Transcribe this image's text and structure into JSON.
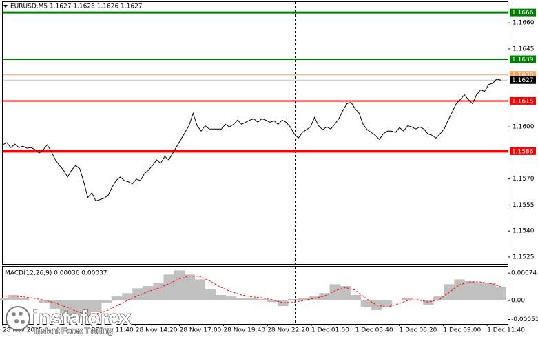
{
  "chart_data": [
    {
      "type": "line",
      "title": "EURUSD,M5  1.1627 1.1628 1.1626 1.1627",
      "series": [
        {
          "color": "#000000",
          "values": [
            1.15897,
            1.15909,
            1.15881,
            1.15901,
            1.15881,
            1.15889,
            1.15877,
            1.15881,
            1.15869,
            1.15849,
            1.15869,
            1.15897,
            1.15857,
            1.1581,
            1.15778,
            1.15751,
            1.15711,
            1.15751,
            1.15778,
            1.15759,
            1.15684,
            1.15593,
            1.1562,
            1.15573,
            1.15581,
            1.15589,
            1.15605,
            1.15652,
            1.15691,
            1.15711,
            1.15691,
            1.15684,
            1.15672,
            1.15699,
            1.15691,
            1.15731,
            1.15751,
            1.15778,
            1.1581,
            1.1579,
            1.1583,
            1.1581,
            1.15849,
            1.15889,
            1.15928,
            1.15968,
            1.16007,
            1.16079,
            1.16007,
            1.15976,
            1.16007,
            1.15988,
            1.15988,
            1.15988,
            1.15988,
            1.16015,
            1.16,
            1.16015,
            1.16039,
            1.16015,
            1.16027,
            1.16039,
            1.16047,
            1.16027,
            1.16047,
            1.16039,
            1.16027,
            1.16035,
            1.16015,
            1.16039,
            1.16027,
            1.16,
            1.1596,
            1.15936,
            1.15968,
            1.15984,
            1.16,
            1.16055,
            1.16007,
            1.15984,
            1.16,
            1.15988,
            1.16015,
            1.16047,
            1.16094,
            1.16134,
            1.16142,
            1.16106,
            1.16079,
            1.16015,
            1.15984,
            1.15968,
            1.15952,
            1.15928,
            1.1596,
            1.15976,
            1.15976,
            1.15968,
            1.15996,
            1.15976,
            1.16007,
            1.16,
            1.15988,
            1.16,
            1.15988,
            1.1596,
            1.15952,
            1.15936,
            1.1596,
            1.15988,
            1.16039,
            1.16086,
            1.16134,
            1.16158,
            1.16185,
            1.16158,
            1.16134,
            1.16185,
            1.16213,
            1.16205,
            1.16244,
            1.16252,
            1.16276,
            1.1627
          ]
        }
      ],
      "ylim": [
        1.1521,
        1.1672
      ],
      "yticks": [
        {
          "value": 1.166,
          "label": "1.1660"
        },
        1.1645,
        {
          "value": 1.16,
          "label": "1.1600"
        },
        {
          "value": 1.157,
          "label": "1.1570"
        },
        1.1555,
        {
          "value": 1.154,
          "label": "1.1540"
        },
        1.1525
      ],
      "grid": false,
      "levels": [
        {
          "value": 1.1666,
          "label": "1.1666",
          "color": "#008000",
          "width": 3
        },
        {
          "value": 1.1639,
          "label": "1.1639",
          "color": "#008000",
          "width": 2
        },
        {
          "value": 1.163,
          "label": "1.1630",
          "color": "#f4a460",
          "width": 1
        },
        {
          "value": 1.1627,
          "label": "1.1627",
          "color": "#c0c0c0",
          "label_color": "#000000",
          "width": 1
        },
        {
          "value": 1.1615,
          "label": "1.1615",
          "color": "#ff0000",
          "width": 2
        },
        {
          "value": 1.1586,
          "label": "1.1586",
          "color": "#ff0000",
          "width": 4
        }
      ],
      "time_labels": [
        "28 Nov 2025",
        "28 Nov 11:40",
        "28 Nov 14:20",
        "28 Nov 17:00",
        "28 Nov 19:40",
        "28 Nov 22:20",
        "1 Dec 01:00",
        "1 Dec 03:40",
        "1 Dec 06:20",
        "1 Dec 09:00",
        "1 Dec 11:40"
      ],
      "watermark": {
        "name": "instaforex",
        "slogan": "Instant Forex Trading"
      }
    },
    {
      "type": "macd",
      "title": "MACD(12,26,9) 0.00036 0.00037",
      "series": [
        {
          "type": "bar",
          "color": "#c0c0c0",
          "values": [
            7e-05,
            0.00015,
            6e-05,
            0,
            -7e-05,
            -0.00022,
            -0.00035,
            -0.00048,
            -0.00044,
            -0.0003,
            -7e-05,
            0.00011,
            0.0002,
            0.00033,
            0.00039,
            0.00048,
            0.0007,
            0.00081,
            0.0007,
            0.00057,
            0.0003,
            0.00015,
            0.00011,
            7e-05,
            6e-05,
            4e-05,
            -4e-05,
            -0.00015,
            4e-05,
            7e-05,
            0.00011,
            0.0002,
            0.00044,
            0.00039,
            0.00015,
            -0.00017,
            -0.00026,
            -0.00017,
            0,
            7e-05,
            0,
            -0.00011,
            0.00011,
            0.00044,
            0.00057,
            0.00052,
            0.00048,
            0.00048,
            0.00036
          ]
        },
        {
          "type": "line",
          "color": "#ff0000",
          "values": [
            0.00012,
            0.00012,
            0.0001,
            6e-05,
            1e-05,
            -6e-05,
            -0.00016,
            -0.00028,
            -0.00036,
            -0.00036,
            -0.00028,
            -0.00014,
            0,
            0.00013,
            0.00024,
            0.00033,
            0.00045,
            0.00058,
            0.00066,
            0.00065,
            0.00052,
            0.00036,
            0.00024,
            0.00015,
            0.0001,
            7e-05,
            2e-05,
            -6e-05,
            -5e-05,
            0,
            6e-05,
            0.00012,
            0.00026,
            0.00035,
            0.00028,
            6e-05,
            -0.00012,
            -0.00018,
            -0.0001,
            0,
            2e-05,
            -4e-05,
            1e-05,
            0.00022,
            0.00042,
            0.0005,
            0.0005,
            0.00046,
            0.00037
          ]
        }
      ],
      "ylim": [
        -0.00063,
        0.00091
      ],
      "yticks": [
        0.00074,
        {
          "value": 0,
          "label": "0.00"
        },
        -0.00051
      ]
    }
  ]
}
